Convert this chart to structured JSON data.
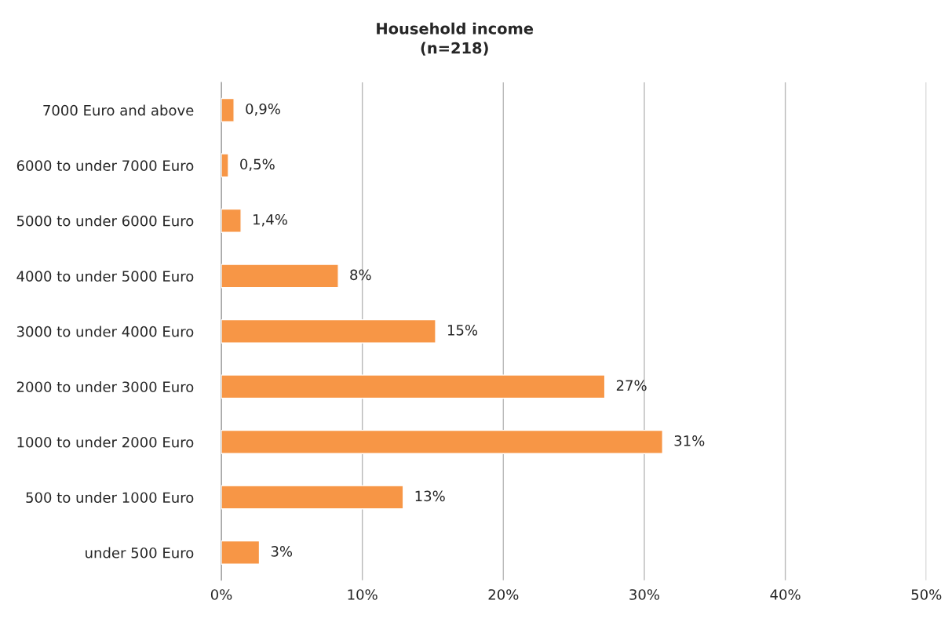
{
  "chart_data": {
    "type": "bar",
    "orientation": "horizontal",
    "title": "Household income\n(n=218)",
    "categories": [
      "7000 Euro and above",
      "6000 to under 7000 Euro",
      "5000 to under 6000 Euro",
      "4000 to under 5000 Euro",
      "3000 to under 4000 Euro",
      "2000 to under 3000 Euro",
      "1000 to under 2000 Euro",
      "500 to under 1000 Euro",
      "under 500 Euro"
    ],
    "values": [
      0.9,
      0.5,
      1.4,
      8.3,
      15.2,
      27.2,
      31.3,
      12.9,
      2.7
    ],
    "value_labels": [
      "0,9%",
      "0,5%",
      "1,4%",
      "8%",
      "15%",
      "27%",
      "31%",
      "13%",
      "3%"
    ],
    "color": "#f79646",
    "xlim": [
      0,
      50
    ],
    "xticks": [
      {
        "value": 0,
        "label": "0%"
      },
      {
        "value": 10,
        "label": "10%"
      },
      {
        "value": 20,
        "label": "20%"
      },
      {
        "value": 30,
        "label": "30%"
      },
      {
        "value": 40,
        "label": "40%"
      },
      {
        "value": 50,
        "label": "50%"
      }
    ],
    "grid": "x"
  }
}
